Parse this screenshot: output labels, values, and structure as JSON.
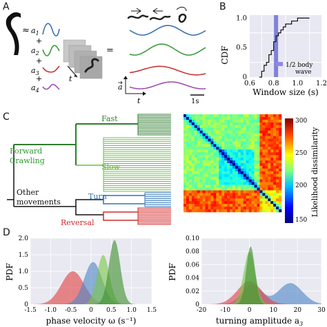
{
  "panels": {
    "a": "A",
    "b": "B",
    "c": "C",
    "d": "D"
  },
  "panel_a": {
    "approx": "≈",
    "modes": [
      "a",
      "a",
      "a",
      "a"
    ],
    "mode_subs": [
      "1",
      "2",
      "3",
      "4"
    ],
    "plus": "+",
    "equals": "=",
    "time_label": "t",
    "vector_label": "a",
    "scale_label": "1s",
    "colors": [
      "#3a6fb5",
      "#3a9a3a",
      "#cc3333",
      "#9a50b0"
    ]
  },
  "panel_b": {
    "ylabel": "CDF",
    "xlabel": "Window size (s)",
    "xticks": [
      "0.6",
      "0.8",
      "1.0",
      "1.2"
    ],
    "yticks": [
      "0",
      "0.5",
      "1.0"
    ],
    "legend_line1": "1/2 body",
    "legend_line2": "wave",
    "marker_x": 0.82
  },
  "panel_c": {
    "labels": {
      "fast": "Fast",
      "forward1": "Forward",
      "forward2": "Crawling",
      "slow": "Slow",
      "other1": "Other",
      "other2": "movements",
      "turn": "Turn",
      "reversal": "Reversal"
    },
    "colorbar_label": "Likelihood dissimilarity",
    "colorbar_ticks": [
      "300",
      "250",
      "200",
      "150"
    ]
  },
  "panel_d": {
    "left": {
      "ylabel": "PDF",
      "xlabel": "phase velocity ω (s⁻¹)",
      "xticks": [
        "-1.5",
        "-1.0",
        "-0.5",
        "0",
        "0.5",
        "1.0",
        "1.5"
      ],
      "yticks": [
        "0",
        "0.5",
        "1.0",
        "1.5",
        "2.0"
      ]
    },
    "right": {
      "ylabel": "PDF",
      "xlabel": "turning amplitude a",
      "xlabel_sub": "3",
      "xticks": [
        "-20",
        "-10",
        "0",
        "10",
        "20",
        "30"
      ],
      "yticks": [
        "0",
        "0.02",
        "0.04",
        "0.06",
        "0.08",
        "0.10"
      ]
    }
  },
  "chart_data": [
    {
      "type": "line",
      "xlabel": "Window size (s)",
      "ylabel": "CDF",
      "xlim": [
        0.6,
        1.2
      ],
      "ylim": [
        0,
        1.05
      ],
      "series": [
        {
          "x": [
            0.68,
            0.7,
            0.72,
            0.74,
            0.76,
            0.78,
            0.8,
            0.82,
            0.84,
            0.86,
            0.88,
            0.9,
            0.95,
            1.0,
            1.05,
            1.1
          ],
          "values": [
            0,
            0.1,
            0.2,
            0.25,
            0.38,
            0.45,
            0.6,
            0.7,
            0.75,
            0.8,
            0.85,
            0.9,
            0.95,
            1.0,
            1.0,
            1.0
          ]
        }
      ]
    },
    {
      "type": "area",
      "xlabel": "phase velocity ω (s⁻¹)",
      "ylabel": "PDF",
      "xlim": [
        -1.5,
        1.5
      ],
      "ylim": [
        0,
        2.0
      ]
    },
    {
      "type": "area",
      "xlabel": "turning amplitude a3",
      "ylabel": "PDF",
      "xlim": [
        -20,
        30
      ],
      "ylim": [
        0,
        0.1
      ]
    }
  ]
}
